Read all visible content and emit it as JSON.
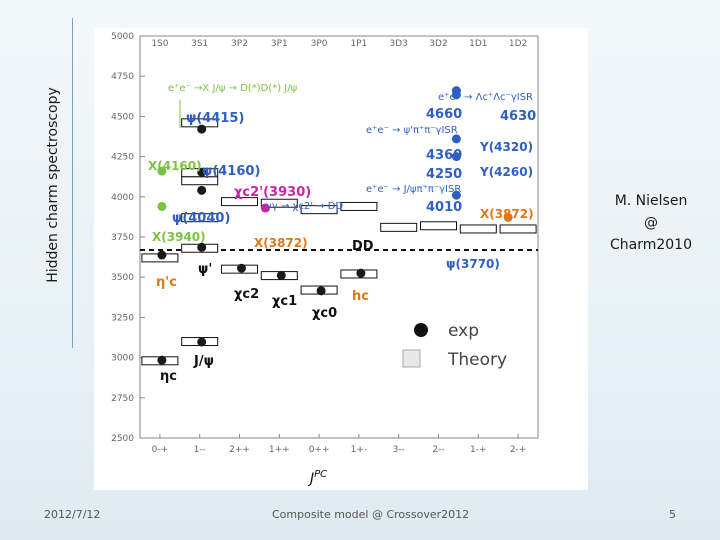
{
  "slide": {
    "vertical_title": "Hidden charm spectroscopy",
    "author_lines": [
      "M. Nielsen",
      "@",
      "Charm2010"
    ],
    "footer_date": "2012/7/12",
    "footer_center": "Composite model @ Crossover2012",
    "page_number": "5"
  },
  "colors": {
    "exp": "#1a1a1a",
    "green": "#7cc242",
    "blue": "#2f5fc0",
    "magenta": "#cc22aa",
    "orange": "#e07818",
    "axis": "#888888"
  },
  "chart_data": {
    "type": "scatter",
    "title": "",
    "xlabel": "J^PC",
    "ylabel": "",
    "ylim": [
      2500,
      5000
    ],
    "y_ticks": [
      "2500",
      "2750",
      "3000",
      "3250",
      "3500",
      "3750",
      "4000",
      "4250",
      "4500",
      "4750",
      "5000"
    ],
    "x_categories": [
      "0-+",
      "1--",
      "2++",
      "1++",
      "0++",
      "1+-",
      "3--",
      "2--",
      "1-+",
      "2-+"
    ],
    "top_labels": [
      "1S0",
      "3S1",
      "3P2",
      "3P1",
      "3P0",
      "1P1",
      "3D3",
      "3D2",
      "1D1",
      "1D2"
    ],
    "threshold_label": "DD",
    "legend": [
      {
        "name": "exp"
      },
      {
        "name": "Theory"
      }
    ],
    "annotations": {
      "eta_c": "ηc",
      "jpsi": "J/ψ",
      "eta_c_prime": "η'c",
      "psi_prime": "ψ'",
      "chi_c2": "χc2",
      "chi_c1": "χc1",
      "chi_c0": "χc0",
      "h_c": "hc",
      "psi4415": "ψ(4415)",
      "psi4160": "ψ(4160)",
      "psi4040": "ψ(4040)",
      "psi3770": "ψ(3770)",
      "x4160": "X(4160)",
      "x3940": "X(3940)",
      "x3872_mid": "X(3872)",
      "x3872_right": "X(3872)",
      "chi_c2_3930": "χc2'(3930)",
      "gg_to_chic2": "γγ → χc2' → DD",
      "ee_xjpsi": "e⁺e⁻ →X J/ψ → D(*)D(*) J/ψ",
      "ee_lambda": "e⁺e⁻ → Λc⁺Λc⁻γISR",
      "ee_psi2s": "e⁺e⁻ → ψ'π⁺π⁻γISR",
      "ee_jpsi": "e⁺e⁻ → J/ψπ⁺π⁻γISR",
      "m4660": "4660",
      "m4630": "4630",
      "m4360": "4360",
      "m4250": "4250",
      "m4010": "4010",
      "y4320": "Y(4320)",
      "y4260": "Y(4260)"
    },
    "series": [
      {
        "name": "exp",
        "points": [
          {
            "col": "0-+",
            "mass": 2984
          },
          {
            "col": "0-+",
            "mass": 3638
          },
          {
            "col": "1--",
            "mass": 3097
          },
          {
            "col": "1--",
            "mass": 3686
          },
          {
            "col": "1--",
            "mass": 4040
          },
          {
            "col": "1--",
            "mass": 4153
          },
          {
            "col": "1--",
            "mass": 4421
          },
          {
            "col": "2++",
            "mass": 3556
          },
          {
            "col": "1++",
            "mass": 3511
          },
          {
            "col": "0++",
            "mass": 3415
          },
          {
            "col": "1+-",
            "mass": 3525
          }
        ]
      },
      {
        "name": "Theory",
        "points": [
          {
            "col": "0-+",
            "mass": 2980
          },
          {
            "col": "0-+",
            "mass": 3620
          },
          {
            "col": "1--",
            "mass": 3100
          },
          {
            "col": "1--",
            "mass": 3680
          },
          {
            "col": "1--",
            "mass": 3870
          },
          {
            "col": "1--",
            "mass": 4100
          },
          {
            "col": "1--",
            "mass": 4150
          },
          {
            "col": "1--",
            "mass": 4460
          },
          {
            "col": "2++",
            "mass": 3550
          },
          {
            "col": "2++",
            "mass": 3970
          },
          {
            "col": "1++",
            "mass": 3510
          },
          {
            "col": "1++",
            "mass": 3960
          },
          {
            "col": "0++",
            "mass": 3420
          },
          {
            "col": "0++",
            "mass": 3920
          },
          {
            "col": "1+-",
            "mass": 3520
          },
          {
            "col": "1+-",
            "mass": 3940
          },
          {
            "col": "3--",
            "mass": 3810
          },
          {
            "col": "2--",
            "mass": 3820
          },
          {
            "col": "1-+",
            "mass": 3800
          },
          {
            "col": "2-+",
            "mass": 3800
          }
        ]
      },
      {
        "name": "X,Y states",
        "points": [
          {
            "label": "X(4160)",
            "mass": 4160,
            "color": "green"
          },
          {
            "label": "X(3940)",
            "mass": 3940,
            "color": "green"
          },
          {
            "label": "X(3930)",
            "mass": 3930,
            "color": "magenta"
          },
          {
            "label": "X(3872)",
            "mass": 3872,
            "color": "orange"
          },
          {
            "label": "4660",
            "mass": 4660,
            "color": "blue"
          },
          {
            "label": "4630",
            "mass": 4634,
            "color": "blue"
          },
          {
            "label": "4360",
            "mass": 4360,
            "color": "blue"
          },
          {
            "label": "4250",
            "mass": 4250,
            "color": "blue"
          },
          {
            "label": "4010",
            "mass": 4010,
            "color": "blue"
          }
        ]
      }
    ]
  }
}
